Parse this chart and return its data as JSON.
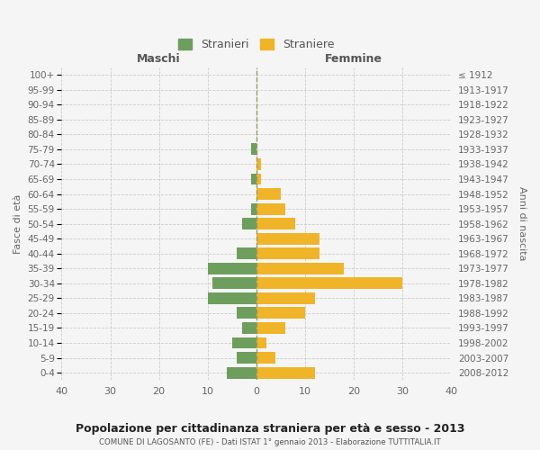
{
  "age_groups": [
    "100+",
    "95-99",
    "90-94",
    "85-89",
    "80-84",
    "75-79",
    "70-74",
    "65-69",
    "60-64",
    "55-59",
    "50-54",
    "45-49",
    "40-44",
    "35-39",
    "30-34",
    "25-29",
    "20-24",
    "15-19",
    "10-14",
    "5-9",
    "0-4"
  ],
  "birth_years": [
    "≤ 1912",
    "1913-1917",
    "1918-1922",
    "1923-1927",
    "1928-1932",
    "1933-1937",
    "1938-1942",
    "1943-1947",
    "1948-1952",
    "1953-1957",
    "1958-1962",
    "1963-1967",
    "1968-1972",
    "1973-1977",
    "1978-1982",
    "1983-1987",
    "1988-1992",
    "1993-1997",
    "1998-2002",
    "2003-2007",
    "2008-2012"
  ],
  "males": [
    0,
    0,
    0,
    0,
    0,
    1,
    0,
    1,
    0,
    1,
    3,
    0,
    4,
    10,
    9,
    10,
    4,
    3,
    5,
    4,
    6
  ],
  "females": [
    0,
    0,
    0,
    0,
    0,
    0,
    1,
    1,
    5,
    6,
    8,
    13,
    13,
    18,
    30,
    12,
    10,
    6,
    2,
    4,
    12
  ],
  "male_color": "#6e9e5e",
  "female_color": "#f0b429",
  "background_color": "#f5f5f5",
  "grid_color": "#cccccc",
  "zero_line_color": "#999966",
  "title": "Popolazione per cittadinanza straniera per età e sesso - 2013",
  "subtitle": "COMUNE DI LAGOSANTO (FE) - Dati ISTAT 1° gennaio 2013 - Elaborazione TUTTITALIA.IT",
  "ylabel_left": "Fasce di età",
  "ylabel_right": "Anni di nascita",
  "xlabel_left": "Maschi",
  "xlabel_right": "Femmine",
  "legend_stranieri": "Stranieri",
  "legend_straniere": "Straniere",
  "xlim": [
    -40,
    40
  ],
  "xticks": [
    -40,
    -30,
    -20,
    -10,
    0,
    10,
    20,
    30,
    40
  ],
  "xticklabels": [
    "40",
    "30",
    "20",
    "10",
    "0",
    "10",
    "20",
    "30",
    "40"
  ]
}
